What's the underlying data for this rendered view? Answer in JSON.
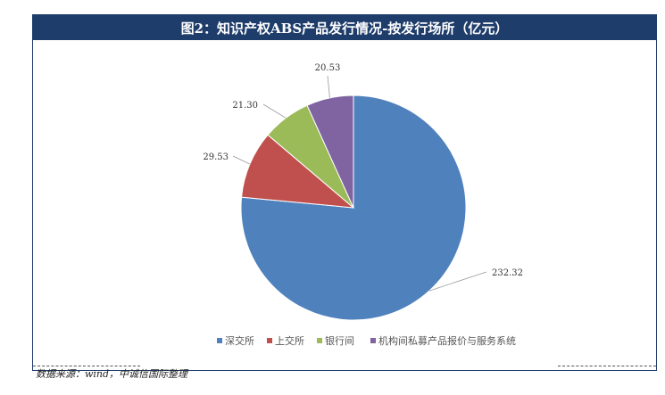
{
  "title": "图2：知识产权ABS产品发行情况-按发行场所（亿元）",
  "source": "数据来源：wind，中诚信国际整理",
  "chart_data": {
    "type": "pie",
    "categories": [
      "深交所",
      "上交所",
      "银行间",
      "机构间私募产品报价与服务系统"
    ],
    "values": [
      232.32,
      29.53,
      21.3,
      20.53
    ],
    "value_labels": [
      "232.32",
      "29.53",
      "21.30",
      "20.53"
    ],
    "colors": [
      "#4f81bd",
      "#c0504d",
      "#9bbb59",
      "#8064a2"
    ],
    "legend_position": "bottom"
  }
}
